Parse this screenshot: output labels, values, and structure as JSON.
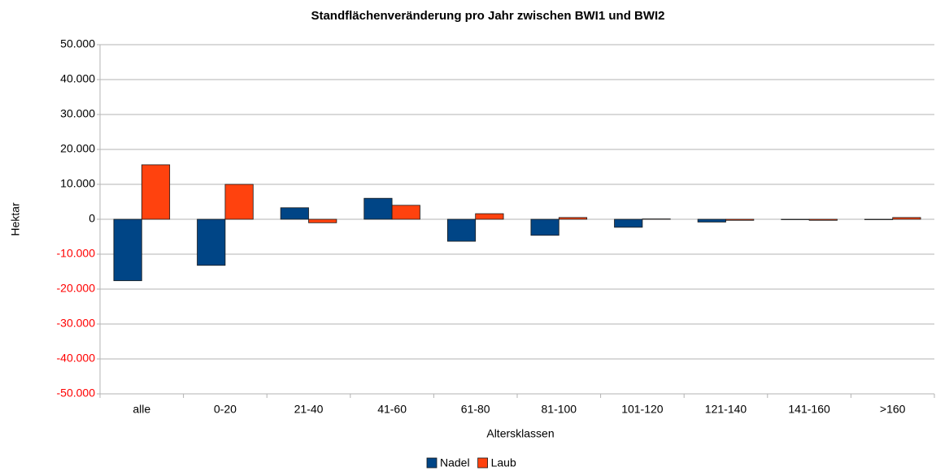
{
  "chart_data": {
    "type": "bar",
    "title": "Standflächenveränderung pro Jahr zwischen BWI1 und BWI2",
    "xlabel": "Altersklassen",
    "ylabel": "Hektar",
    "categories": [
      "alle",
      "0-20",
      "21-40",
      "41-60",
      "61-80",
      "81-100",
      "101-120",
      "121-140",
      "141-160",
      ">160"
    ],
    "series": [
      {
        "name": "Nadel",
        "color": "#004586",
        "values": [
          -17600,
          -13200,
          3300,
          6000,
          -6300,
          -4600,
          -2300,
          -800,
          -100,
          -100
        ]
      },
      {
        "name": "Laub",
        "color": "#ff420e",
        "values": [
          15600,
          10000,
          -1000,
          4000,
          1600,
          500,
          100,
          -300,
          -300,
          500
        ]
      }
    ],
    "ylim": [
      -50000,
      50000
    ],
    "yticks": [
      {
        "value": 50000,
        "label": "50.000"
      },
      {
        "value": 40000,
        "label": "40.000"
      },
      {
        "value": 30000,
        "label": "30.000"
      },
      {
        "value": 20000,
        "label": "20.000"
      },
      {
        "value": 10000,
        "label": "10.000"
      },
      0,
      {
        "value": -10000,
        "label": "-10.000"
      },
      {
        "value": -20000,
        "label": "-20.000"
      },
      {
        "value": -30000,
        "label": "-30.000"
      },
      {
        "value": -40000,
        "label": "-40.000"
      },
      {
        "value": -50000,
        "label": "-50.000"
      }
    ],
    "negative_tick_color": "#ff0000",
    "grid": true,
    "legend": "bottom"
  }
}
